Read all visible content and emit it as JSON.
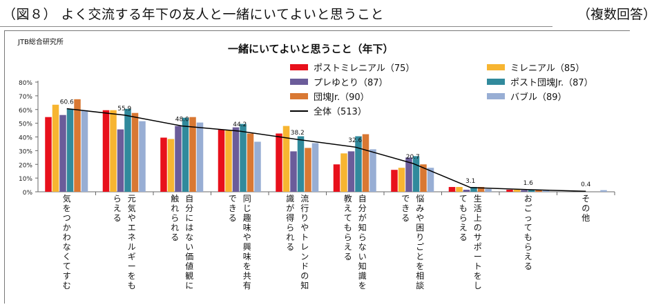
{
  "header": {
    "figure_title": "（図８） よく交流する年下の友人と一緒にいてよいと思うこと",
    "note": "（複数回答）"
  },
  "source": "JTB総合研究所",
  "colors": {
    "post_millennial": "#e8101b",
    "millennial": "#f7b531",
    "pre_yutori": "#6b5c9a",
    "post_dankai": "#318a9c",
    "dankai": "#d97833",
    "bubble": "#98aed4",
    "total_line": "#000000"
  },
  "chart_data": {
    "type": "bar",
    "title": "一緒にいてよいと思うこと（年下）",
    "ylim": [
      0,
      80
    ],
    "yticks": [
      "0%",
      "10%",
      "20%",
      "30%",
      "40%",
      "50%",
      "60%",
      "70%",
      "80%"
    ],
    "grid": false,
    "legend_position": "top-right",
    "categories": [
      [
        "気をつかわなくてすむ"
      ],
      [
        "元気やエネルギーをも",
        "らえる"
      ],
      [
        "自分にはない価値観に",
        "触れられる"
      ],
      [
        "同じ趣味や興味を共有",
        "できる"
      ],
      [
        "流行りやトレンドの知",
        "識が得られる"
      ],
      [
        "自分が知らない知識を",
        "教えてもらえる"
      ],
      [
        "悩みや困りごとを相談",
        "できる"
      ],
      [
        "生活上のサポートをし",
        "てもらえる"
      ],
      [
        "おごってもらえる"
      ],
      [
        "その他"
      ]
    ],
    "series": [
      {
        "name": "ポストミレニアル（75）",
        "color_key": "post_millennial",
        "values": [
          54.5,
          59.5,
          39.5,
          45.5,
          42.5,
          20,
          16,
          3.5,
          1.5,
          0
        ]
      },
      {
        "name": "ミレニアル（85）",
        "color_key": "millennial",
        "values": [
          63.5,
          59.5,
          38.5,
          45,
          48,
          28,
          17.5,
          3.5,
          1.5,
          0
        ]
      },
      {
        "name": "プレゆとり（87）",
        "color_key": "pre_yutori",
        "values": [
          56,
          45.5,
          48,
          47,
          29.5,
          29.5,
          25,
          1.5,
          1.2,
          0
        ]
      },
      {
        "name": "ポスト団塊Jr.（87）",
        "color_key": "post_dankai",
        "values": [
          60.5,
          60.5,
          54,
          49.5,
          40.5,
          40.5,
          26,
          3.5,
          1.5,
          0
        ]
      },
      {
        "name": "団塊Jr.（90）",
        "color_key": "dankai",
        "values": [
          67.5,
          57.5,
          54.5,
          42.5,
          32,
          42,
          20,
          3.5,
          1.5,
          0
        ]
      },
      {
        "name": "バブル（89）",
        "color_key": "bubble",
        "values": [
          59.5,
          51.5,
          50.5,
          36.5,
          35.5,
          31,
          17.5,
          2,
          1.5,
          1.2
        ]
      }
    ],
    "total": {
      "name": "全体（513）",
      "values": [
        60.6,
        55.9,
        48.0,
        44.2,
        38.2,
        32.6,
        20.7,
        3.1,
        1.6,
        0.4
      ],
      "labels": [
        "60.6",
        "55.9",
        "48.0",
        "44.2",
        "38.2",
        "32.6",
        "20.7",
        "3.1",
        "1.6",
        "0.4"
      ]
    }
  }
}
